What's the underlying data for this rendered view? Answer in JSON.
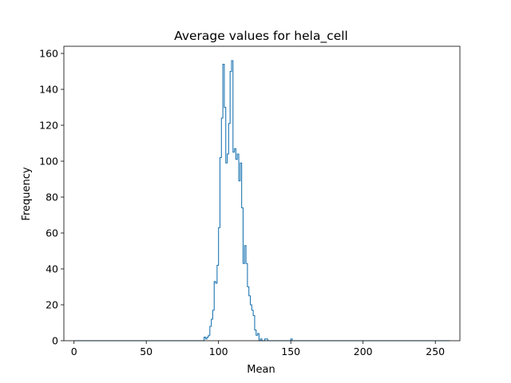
{
  "chart_data": {
    "type": "histogram",
    "title": "Average values for hela_cell",
    "xlabel": "Mean",
    "ylabel": "Frequency",
    "xlim": [
      -7,
      267
    ],
    "ylim": [
      0,
      164
    ],
    "x_ticks": [
      0,
      50,
      100,
      150,
      200,
      250
    ],
    "y_ticks": [
      0,
      20,
      40,
      60,
      80,
      100,
      120,
      140,
      160
    ],
    "grid": false,
    "legend": "none",
    "series": [
      {
        "color": "#1f77b4",
        "style": "step",
        "x": [
          0,
          89,
          90,
          91,
          92,
          93,
          94,
          95,
          96,
          97,
          98,
          99,
          100,
          101,
          102,
          103,
          104,
          105,
          106,
          107,
          108,
          109,
          110,
          111,
          112,
          113,
          114,
          115,
          116,
          117,
          118,
          119,
          120,
          121,
          122,
          123,
          124,
          125,
          126,
          127,
          128,
          129,
          130,
          131,
          132,
          133,
          134,
          135,
          136,
          137,
          138,
          139,
          140,
          141,
          142,
          143,
          144,
          145,
          146,
          147,
          148,
          149,
          150,
          151,
          260
        ],
        "y": [
          0,
          0,
          2,
          1,
          2,
          3,
          8,
          12,
          17,
          33,
          32,
          42,
          63,
          102,
          124,
          154,
          130,
          99,
          104,
          121,
          150,
          156,
          105,
          107,
          101,
          104,
          89,
          99,
          74,
          43,
          53,
          43,
          30,
          25,
          20,
          17,
          14,
          6,
          3,
          4,
          0,
          1,
          0,
          0,
          1,
          1,
          0,
          0,
          0,
          0,
          0,
          0,
          0,
          0,
          0,
          0,
          0,
          0,
          0,
          0,
          0,
          0,
          1,
          0
        ]
      }
    ]
  }
}
